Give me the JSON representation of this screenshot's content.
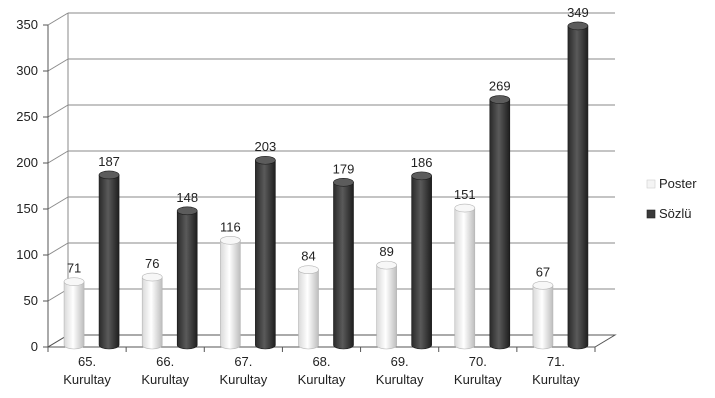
{
  "chart_data": {
    "type": "bar",
    "style": "3d-cylinder",
    "categories": [
      [
        "65.",
        "Kurultay"
      ],
      [
        "66.",
        "Kurultay"
      ],
      [
        "67.",
        "Kurultay"
      ],
      [
        "68.",
        "Kurultay"
      ],
      [
        "69.",
        "Kurultay"
      ],
      [
        "70.",
        "Kurultay"
      ],
      [
        "71.",
        "Kurultay"
      ]
    ],
    "series": [
      {
        "name": "Poster",
        "values": [
          71,
          76,
          116,
          84,
          89,
          151,
          67
        ],
        "color": "#f2f2f2"
      },
      {
        "name": "Sözlü",
        "values": [
          187,
          148,
          203,
          179,
          186,
          269,
          349
        ],
        "color": "#404040"
      }
    ],
    "ylim": [
      0,
      350
    ],
    "yticks": [
      0,
      50,
      100,
      150,
      200,
      250,
      300,
      350
    ],
    "grid": true,
    "legend": "right",
    "title": "",
    "xlabel": "",
    "ylabel": ""
  }
}
